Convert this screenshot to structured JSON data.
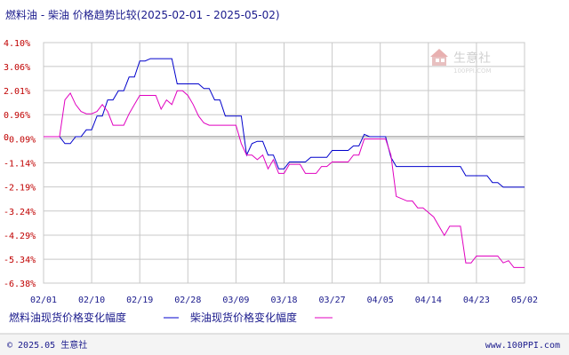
{
  "header": {
    "title": "燃料油 - 柴油 价格趋势比较(2025-02-01 - 2025-05-02)"
  },
  "watermark": {
    "brand": "生意社",
    "url": "100PPI.COM"
  },
  "footer": {
    "copyright": "© 2025.05 生意社",
    "site": "www.100PPI.com"
  },
  "colors": {
    "series1": "#0000cc",
    "series2": "#e000c0",
    "ytick": "#c00000",
    "text": "#1a1a8c",
    "grid": "#c8c8c8",
    "zero_line": "#808080"
  },
  "chart_data": {
    "type": "line",
    "title": "燃料油 - 柴油 价格趋势比较(2025-02-01 - 2025-05-02)",
    "xlabel": "",
    "ylabel": "",
    "x_range": [
      "2025-02-01",
      "2025-05-02"
    ],
    "ylim": [
      -6.38,
      4.1
    ],
    "y_ticks": [
      "4.10%",
      "3.06%",
      "2.01%",
      "0.96%",
      "-0.09%",
      "-1.14%",
      "-2.19%",
      "-3.24%",
      "-4.29%",
      "-5.34%",
      "-6.38%"
    ],
    "y_tick_values": [
      4.1,
      3.06,
      2.01,
      0.96,
      -0.09,
      -1.14,
      -2.19,
      -3.24,
      -4.29,
      -5.34,
      -6.38
    ],
    "y_zero_label": "0",
    "x_ticks": [
      "02/01",
      "02/10",
      "02/19",
      "02/28",
      "03/09",
      "03/18",
      "03/27",
      "04/05",
      "04/14",
      "04/23",
      "05/02"
    ],
    "x_tick_dates": [
      "2025-02-01",
      "2025-02-10",
      "2025-02-19",
      "2025-02-28",
      "2025-03-09",
      "2025-03-18",
      "2025-03-27",
      "2025-04-05",
      "2025-04-14",
      "2025-04-23",
      "2025-05-02"
    ],
    "grid": true,
    "legend_position": "bottom",
    "series": [
      {
        "name": "燃料油现货价格变化幅度",
        "color": "#0000cc",
        "points": [
          [
            "2025-02-01",
            0.0
          ],
          [
            "2025-02-04",
            0.0
          ],
          [
            "2025-02-05",
            -0.3
          ],
          [
            "2025-02-06",
            -0.3
          ],
          [
            "2025-02-07",
            0.0
          ],
          [
            "2025-02-08",
            0.0
          ],
          [
            "2025-02-09",
            0.3
          ],
          [
            "2025-02-10",
            0.3
          ],
          [
            "2025-02-11",
            0.9
          ],
          [
            "2025-02-12",
            0.9
          ],
          [
            "2025-02-13",
            1.6
          ],
          [
            "2025-02-14",
            1.6
          ],
          [
            "2025-02-15",
            2.0
          ],
          [
            "2025-02-16",
            2.0
          ],
          [
            "2025-02-17",
            2.6
          ],
          [
            "2025-02-18",
            2.6
          ],
          [
            "2025-02-19",
            3.3
          ],
          [
            "2025-02-20",
            3.3
          ],
          [
            "2025-02-21",
            3.4
          ],
          [
            "2025-02-25",
            3.4
          ],
          [
            "2025-02-26",
            2.3
          ],
          [
            "2025-03-01",
            2.3
          ],
          [
            "2025-03-02",
            2.3
          ],
          [
            "2025-03-03",
            2.1
          ],
          [
            "2025-03-04",
            2.1
          ],
          [
            "2025-03-05",
            1.6
          ],
          [
            "2025-03-06",
            1.6
          ],
          [
            "2025-03-07",
            0.9
          ],
          [
            "2025-03-08",
            0.9
          ],
          [
            "2025-03-10",
            0.9
          ],
          [
            "2025-03-11",
            -0.8
          ],
          [
            "2025-03-12",
            -0.3
          ],
          [
            "2025-03-13",
            -0.2
          ],
          [
            "2025-03-14",
            -0.2
          ],
          [
            "2025-03-15",
            -0.8
          ],
          [
            "2025-03-16",
            -0.8
          ],
          [
            "2025-03-17",
            -1.4
          ],
          [
            "2025-03-18",
            -1.4
          ],
          [
            "2025-03-19",
            -1.1
          ],
          [
            "2025-03-22",
            -1.1
          ],
          [
            "2025-03-23",
            -0.9
          ],
          [
            "2025-03-26",
            -0.9
          ],
          [
            "2025-03-27",
            -0.6
          ],
          [
            "2025-03-30",
            -0.6
          ],
          [
            "2025-03-31",
            -0.4
          ],
          [
            "2025-04-01",
            -0.4
          ],
          [
            "2025-04-02",
            0.1
          ],
          [
            "2025-04_03",
            0.0
          ],
          [
            "2025-04-06",
            0.0
          ],
          [
            "2025-04-07",
            -0.9
          ],
          [
            "2025-04-08",
            -1.3
          ],
          [
            "2025-04-20",
            -1.3
          ],
          [
            "2025-04-21",
            -1.7
          ],
          [
            "2025-04-25",
            -1.7
          ],
          [
            "2025-04-26",
            -2.0
          ],
          [
            "2025-04-27",
            -2.0
          ],
          [
            "2025-04-28",
            -2.2
          ],
          [
            "2025-05-02",
            -2.2
          ]
        ]
      },
      {
        "name": "柴油现货价格变化幅度",
        "color": "#e000c0",
        "points": [
          [
            "2025-02-01",
            0.0
          ],
          [
            "2025-02-04",
            0.0
          ],
          [
            "2025-02-05",
            1.6
          ],
          [
            "2025-02-06",
            1.9
          ],
          [
            "2025-02-07",
            1.4
          ],
          [
            "2025-02-08",
            1.1
          ],
          [
            "2025-02-09",
            1.0
          ],
          [
            "2025-02-10",
            1.0
          ],
          [
            "2025-02-11",
            1.1
          ],
          [
            "2025-02-12",
            1.4
          ],
          [
            "2025-02-13",
            1.1
          ],
          [
            "2025-02-14",
            0.5
          ],
          [
            "2025-02-16",
            0.5
          ],
          [
            "2025-02-17",
            1.0
          ],
          [
            "2025-02-18",
            1.4
          ],
          [
            "2025-02-19",
            1.8
          ],
          [
            "2025-02-22",
            1.8
          ],
          [
            "2025-02-23",
            1.2
          ],
          [
            "2025-02-24",
            1.6
          ],
          [
            "2025-02-25",
            1.4
          ],
          [
            "2025-02-26",
            2.0
          ],
          [
            "2025-02-27",
            2.0
          ],
          [
            "2025-02-28",
            1.8
          ],
          [
            "2025-03-01",
            1.4
          ],
          [
            "2025-03-02",
            0.9
          ],
          [
            "2025-03-03",
            0.6
          ],
          [
            "2025-03-04",
            0.5
          ],
          [
            "2025-03-09",
            0.5
          ],
          [
            "2025-03-10",
            -0.3
          ],
          [
            "2025-03-11",
            -0.8
          ],
          [
            "2025-03-12",
            -0.8
          ],
          [
            "2025-03-13",
            -1.0
          ],
          [
            "2025-03-14",
            -0.8
          ],
          [
            "2025-03-15",
            -1.4
          ],
          [
            "2025-03-16",
            -1.0
          ],
          [
            "2025-03-17",
            -1.6
          ],
          [
            "2025-03-18",
            -1.6
          ],
          [
            "2025-03-19",
            -1.2
          ],
          [
            "2025-03-21",
            -1.2
          ],
          [
            "2025-03-22",
            -1.6
          ],
          [
            "2025-03-24",
            -1.6
          ],
          [
            "2025-03-25",
            -1.3
          ],
          [
            "2025-03-26",
            -1.3
          ],
          [
            "2025-03-27",
            -1.1
          ],
          [
            "2025-03-30",
            -1.1
          ],
          [
            "2025-03-31",
            -0.8
          ],
          [
            "2025-04-01",
            -0.8
          ],
          [
            "2025-04-02",
            -0.1
          ],
          [
            "2025-04-06",
            -0.1
          ],
          [
            "2025-04-07",
            -0.8
          ],
          [
            "2025-04-08",
            -2.6
          ],
          [
            "2025-04-10",
            -2.8
          ],
          [
            "2025-04-11",
            -2.8
          ],
          [
            "2025-04-12",
            -3.1
          ],
          [
            "2025-04-13",
            -3.1
          ],
          [
            "2025-04-15",
            -3.5
          ],
          [
            "2025-04-16",
            -3.9
          ],
          [
            "2025-04-17",
            -4.3
          ],
          [
            "2025-04-18",
            -3.9
          ],
          [
            "2025-04-20",
            -3.9
          ],
          [
            "2025-04-21",
            -5.5
          ],
          [
            "2025-04-22",
            -5.5
          ],
          [
            "2025-04-23",
            -5.2
          ],
          [
            "2025-04-27",
            -5.2
          ],
          [
            "2025-04-28",
            -5.5
          ],
          [
            "2025-04-29",
            -5.4
          ],
          [
            "2025-04-30",
            -5.7
          ],
          [
            "2025-05-02",
            -5.7
          ]
        ]
      }
    ]
  }
}
